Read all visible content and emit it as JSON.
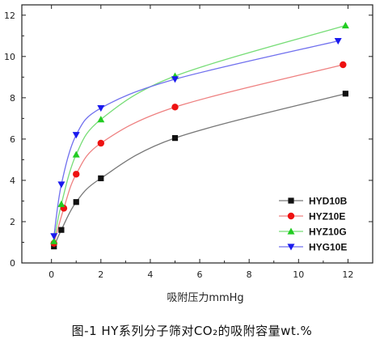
{
  "caption": "图-1 HY系列分子筛对CO₂的吸附容量wt.%",
  "chart_data": {
    "type": "line",
    "title": "",
    "xlabel": "吸附压力mmHg",
    "ylabel": "",
    "xlim": [
      -1.2,
      13.0
    ],
    "ylim": [
      0,
      12.5
    ],
    "xticks": [
      0,
      2,
      4,
      6,
      8,
      10,
      12
    ],
    "yticks": [
      0,
      2,
      4,
      6,
      8,
      10,
      12
    ],
    "grid": false,
    "legend_position": "bottom-right",
    "series": [
      {
        "name": "HYD10B",
        "marker": "square",
        "color": "#111111",
        "line_color": "#777777",
        "x": [
          0.1,
          0.4,
          1.0,
          2.0,
          5.0,
          11.9
        ],
        "y": [
          0.8,
          1.6,
          2.95,
          4.1,
          6.05,
          8.2
        ]
      },
      {
        "name": "HYZ10E",
        "marker": "circle",
        "color": "#ee1111",
        "line_color": "#ee8080",
        "x": [
          0.1,
          0.5,
          1.0,
          2.0,
          5.0,
          11.8
        ],
        "y": [
          0.95,
          2.65,
          4.3,
          5.8,
          7.55,
          9.6
        ]
      },
      {
        "name": "HYZ10G",
        "marker": "triangle-up",
        "color": "#22cc22",
        "line_color": "#77dd77",
        "x": [
          0.1,
          0.4,
          1.0,
          2.0,
          5.0,
          11.9
        ],
        "y": [
          1.05,
          2.85,
          5.25,
          6.95,
          9.05,
          11.5
        ]
      },
      {
        "name": "HYG10E",
        "marker": "triangle-down",
        "color": "#1a1aee",
        "line_color": "#7070ee",
        "x": [
          0.1,
          0.4,
          1.0,
          2.0,
          5.0,
          11.6
        ],
        "y": [
          1.3,
          3.8,
          6.2,
          7.5,
          8.9,
          10.75
        ]
      }
    ]
  }
}
